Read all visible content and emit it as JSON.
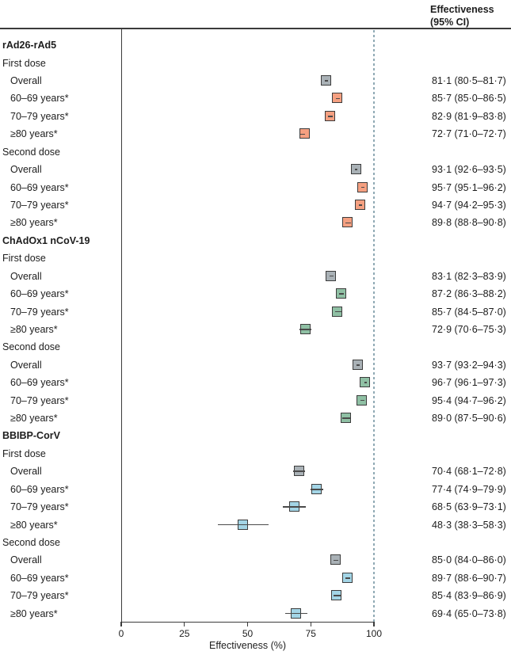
{
  "header": {
    "column_label": "Effectiveness\n(95% CI)"
  },
  "axis": {
    "label": "Effectiveness (%)",
    "ticks": [
      0,
      25,
      50,
      75,
      100
    ],
    "min": 0,
    "max": 100,
    "reference_line": 100
  },
  "colors": {
    "overall_box": "#A9B1B6",
    "rad26_box": "#F5A081",
    "chadox_box": "#8FC0A4",
    "bbibp_box": "#A3D5E6",
    "box_border": "#3c3c3c",
    "ci_line": "#4a4a4a",
    "reference_dash": "#8FA9B4",
    "rule": "#3b3b3b"
  },
  "chart_data": {
    "type": "forest",
    "title": "",
    "xlabel": "Effectiveness (%)",
    "xlim": [
      0,
      100
    ],
    "grid": false,
    "reference_line_x": 100,
    "value_column_header": "Effectiveness (95% CI)",
    "groups": [
      {
        "name": "rAd26-rAd5",
        "age_color": "#F5A081",
        "doses": [
          {
            "name": "First dose",
            "rows": [
              {
                "label": "Overall",
                "value": 81.1,
                "lo": 80.5,
                "hi": 81.7,
                "display": "81·1 (80·5–81·7)",
                "overall": true
              },
              {
                "label": "60–69 years*",
                "value": 85.7,
                "lo": 85.0,
                "hi": 86.5,
                "display": "85·7 (85·0–86·5)",
                "overall": false
              },
              {
                "label": "70–79 years*",
                "value": 82.9,
                "lo": 81.9,
                "hi": 83.8,
                "display": "82·9 (81·9–83·8)",
                "overall": false
              },
              {
                "label": "≥80 years*",
                "value": 72.7,
                "lo": 71.0,
                "hi": 72.7,
                "display": "72·7 (71·0–72·7)",
                "overall": false
              }
            ]
          },
          {
            "name": "Second dose",
            "rows": [
              {
                "label": "Overall",
                "value": 93.1,
                "lo": 92.6,
                "hi": 93.5,
                "display": "93·1 (92·6–93·5)",
                "overall": true
              },
              {
                "label": "60–69 years*",
                "value": 95.7,
                "lo": 95.1,
                "hi": 96.2,
                "display": "95·7 (95·1–96·2)",
                "overall": false
              },
              {
                "label": "70–79 years*",
                "value": 94.7,
                "lo": 94.2,
                "hi": 95.3,
                "display": "94·7 (94·2–95·3)",
                "overall": false
              },
              {
                "label": "≥80 years*",
                "value": 89.8,
                "lo": 88.8,
                "hi": 90.8,
                "display": "89·8 (88·8–90·8)",
                "overall": false
              }
            ]
          }
        ]
      },
      {
        "name": "ChAdOx1 nCoV-19",
        "age_color": "#8FC0A4",
        "doses": [
          {
            "name": "First dose",
            "rows": [
              {
                "label": "Overall",
                "value": 83.1,
                "lo": 82.3,
                "hi": 83.9,
                "display": "83·1 (82·3–83·9)",
                "overall": true
              },
              {
                "label": "60–69 years*",
                "value": 87.2,
                "lo": 86.3,
                "hi": 88.2,
                "display": "87·2 (86·3–88·2)",
                "overall": false
              },
              {
                "label": "70–79 years*",
                "value": 85.7,
                "lo": 84.5,
                "hi": 87.0,
                "display": "85·7 (84·5–87·0)",
                "overall": false
              },
              {
                "label": "≥80 years*",
                "value": 72.9,
                "lo": 70.6,
                "hi": 75.3,
                "display": "72·9 (70·6–75·3)",
                "overall": false
              }
            ]
          },
          {
            "name": "Second dose",
            "rows": [
              {
                "label": "Overall",
                "value": 93.7,
                "lo": 93.2,
                "hi": 94.3,
                "display": "93·7 (93·2–94·3)",
                "overall": true
              },
              {
                "label": "60–69 years*",
                "value": 96.7,
                "lo": 96.1,
                "hi": 97.3,
                "display": "96·7 (96·1–97·3)",
                "overall": false
              },
              {
                "label": "70–79 years*",
                "value": 95.4,
                "lo": 94.7,
                "hi": 96.2,
                "display": "95·4 (94·7–96·2)",
                "overall": false
              },
              {
                "label": "≥80 years*",
                "value": 89.0,
                "lo": 87.5,
                "hi": 90.6,
                "display": "89·0 (87·5–90·6)",
                "overall": false
              }
            ]
          }
        ]
      },
      {
        "name": "BBIBP-CorV",
        "age_color": "#A3D5E6",
        "doses": [
          {
            "name": "First dose",
            "rows": [
              {
                "label": "Overall",
                "value": 70.4,
                "lo": 68.1,
                "hi": 72.8,
                "display": "70·4 (68·1–72·8)",
                "overall": true
              },
              {
                "label": "60–69 years*",
                "value": 77.4,
                "lo": 74.9,
                "hi": 79.9,
                "display": "77·4 (74·9–79·9)",
                "overall": false
              },
              {
                "label": "70–79 years*",
                "value": 68.5,
                "lo": 63.9,
                "hi": 73.1,
                "display": "68·5 (63·9–73·1)",
                "overall": false
              },
              {
                "label": "≥80 years*",
                "value": 48.3,
                "lo": 38.3,
                "hi": 58.3,
                "display": "48·3 (38·3–58·3)",
                "overall": false
              }
            ]
          },
          {
            "name": "Second dose",
            "rows": [
              {
                "label": "Overall",
                "value": 85.0,
                "lo": 84.0,
                "hi": 86.0,
                "display": "85·0 (84·0–86·0)",
                "overall": true
              },
              {
                "label": "60–69 years*",
                "value": 89.7,
                "lo": 88.6,
                "hi": 90.7,
                "display": "89·7 (88·6–90·7)",
                "overall": false
              },
              {
                "label": "70–79 years*",
                "value": 85.4,
                "lo": 83.9,
                "hi": 86.9,
                "display": "85·4 (83·9–86·9)",
                "overall": false
              },
              {
                "label": "≥80 years*",
                "value": 69.4,
                "lo": 65.0,
                "hi": 73.8,
                "display": "69·4 (65·0–73·8)",
                "overall": false
              }
            ]
          }
        ]
      }
    ]
  }
}
